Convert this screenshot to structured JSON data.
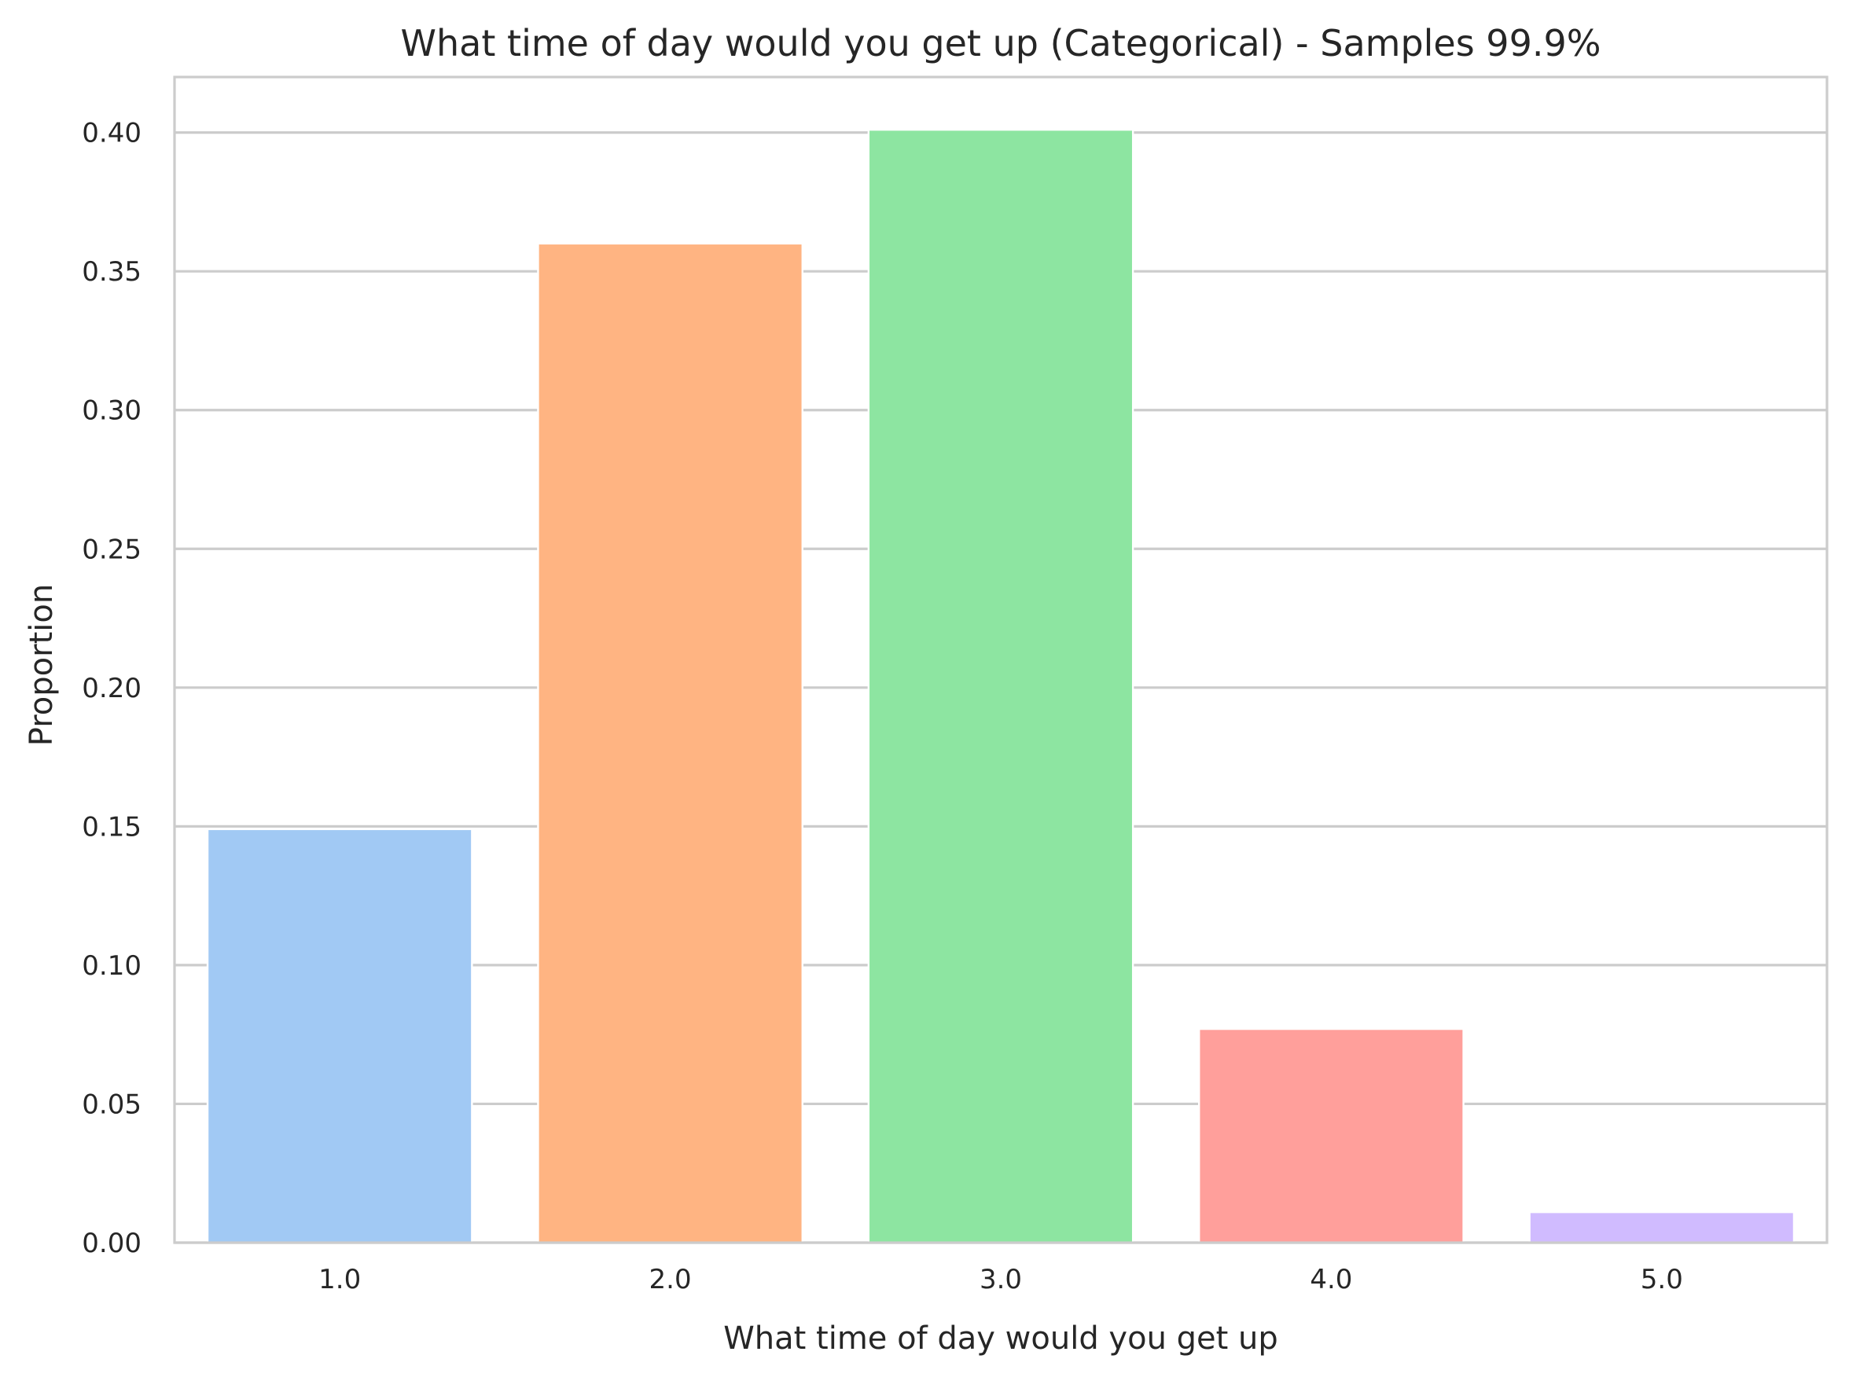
{
  "chart_data": {
    "type": "bar",
    "title": "What time of day would you get up (Categorical) - Samples 99.9%",
    "xlabel": "What time of day would you get up",
    "ylabel": "Proportion",
    "categories": [
      "1.0",
      "2.0",
      "3.0",
      "4.0",
      "5.0"
    ],
    "values": [
      0.149,
      0.36,
      0.401,
      0.077,
      0.011
    ],
    "colors": [
      "#a1c9f4",
      "#ffb482",
      "#8de5a1",
      "#ff9f9b",
      "#d0bbff"
    ],
    "ylim": [
      0,
      0.42
    ],
    "yticks": [
      "0.00",
      "0.05",
      "0.10",
      "0.15",
      "0.20",
      "0.25",
      "0.30",
      "0.35",
      "0.40"
    ],
    "grid": true,
    "legend": "none"
  }
}
